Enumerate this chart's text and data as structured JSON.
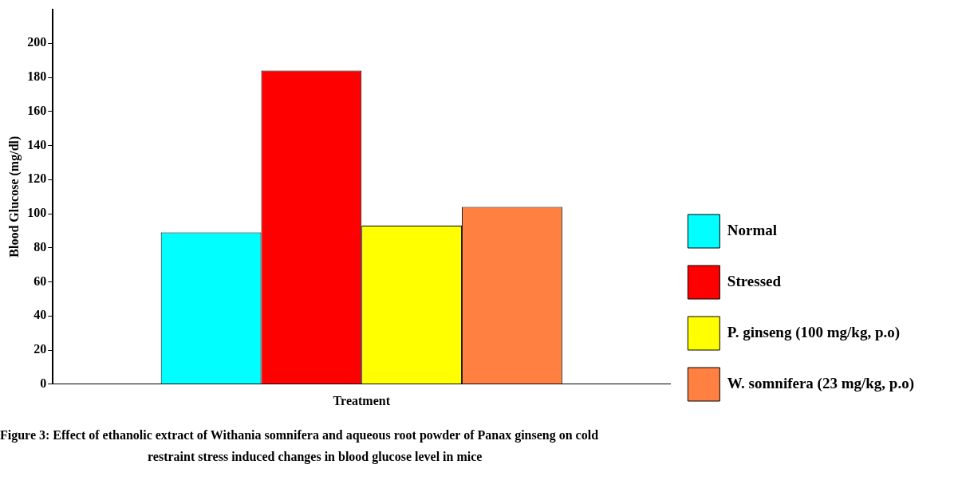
{
  "chart_data": {
    "type": "bar",
    "ylabel": "Blood Glucose (mg/dl)",
    "categories": [
      "Treatment"
    ],
    "series": [
      {
        "name": "Normal",
        "color": "#00ffff",
        "values": [
          89
        ]
      },
      {
        "name": "Stressed",
        "color": "#ff0000",
        "values": [
          184
        ]
      },
      {
        "name": "P. ginseng (100 mg/kg, p.o)",
        "color": "#ffff00",
        "values": [
          93
        ]
      },
      {
        "name": "W. somnifera (23 mg/kg, p.o)",
        "color": "#ff8040",
        "values": [
          104
        ]
      }
    ],
    "ylim": [
      0,
      220
    ],
    "yticks": [
      0,
      20,
      40,
      60,
      80,
      100,
      120,
      140,
      160,
      180,
      200
    ],
    "grid": false,
    "legend": "right",
    "annotations": [
      "Figure 3: Effect of ethanolic extract of Withania somnifera and aqueous root powder of Panax ginseng on cold restraint stress induced changes in blood glucose level in mice"
    ]
  }
}
